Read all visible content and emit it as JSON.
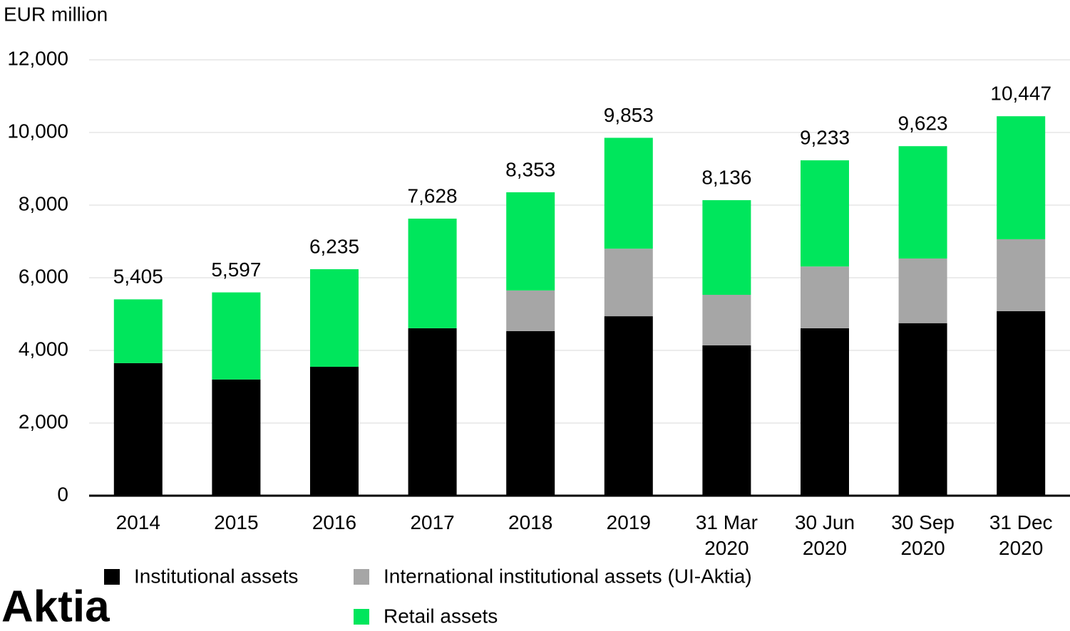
{
  "chart_data": {
    "type": "stacked_bar",
    "y_axis_label": "EUR million",
    "categories": [
      "2014",
      "2015",
      "2016",
      "2017",
      "2018",
      "2019",
      "31 Mar 2020",
      "30 Jun 2020",
      "30 Sep 2020",
      "31 Dec 2020"
    ],
    "series": [
      {
        "name": "Institutional assets",
        "color": "#000000",
        "values": [
          3650,
          3200,
          3550,
          4610,
          4530,
          4940,
          4140,
          4610,
          4750,
          5080
        ]
      },
      {
        "name": "International institutional assets (UI-Aktia)",
        "color": "#a6a6a6",
        "values": [
          0,
          0,
          0,
          0,
          1120,
          1860,
          1390,
          1700,
          1780,
          1980
        ]
      },
      {
        "name": "Retail assets",
        "color": "#00e65c",
        "values": [
          1755,
          2397,
          2685,
          3018,
          2703,
          3053,
          2606,
          2923,
          3093,
          3387
        ]
      }
    ],
    "totals": [
      5405,
      5597,
      6235,
      7628,
      8353,
      9853,
      8136,
      9233,
      9623,
      10447
    ],
    "total_labels": [
      "5,405",
      "5,597",
      "6,235",
      "7,628",
      "8,353",
      "9,853",
      "8,136",
      "9,233",
      "9,623",
      "10,447"
    ],
    "ylim": [
      0,
      12000
    ],
    "yticks": [
      0,
      {
        "value": 2000,
        "label": "2,000"
      },
      {
        "value": 4000,
        "label": "4,000"
      },
      {
        "value": 6000,
        "label": "6,000"
      },
      {
        "value": 8000,
        "label": "8,000"
      },
      {
        "value": 10000,
        "label": "10,000"
      },
      {
        "value": 12000,
        "label": "12,000"
      }
    ],
    "grid": true,
    "logo": "Aktia"
  }
}
